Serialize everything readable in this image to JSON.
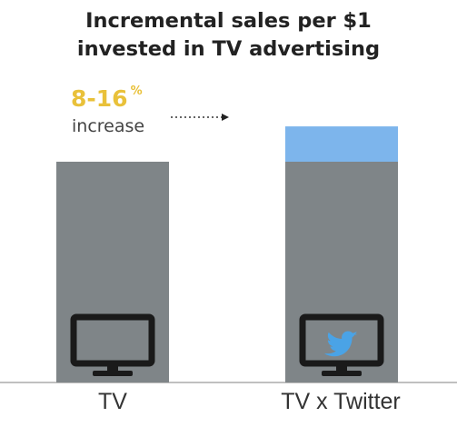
{
  "chart_data": {
    "type": "bar",
    "title_lines": [
      "Incremental sales per $1",
      "invested in TV advertising"
    ],
    "categories": [
      "TV",
      "TV x Twitter"
    ],
    "series": [
      {
        "values": [
          1.0,
          1.0
        ]
      },
      {
        "values": [
          0,
          0.16
        ]
      }
    ],
    "ylim": [
      0,
      1.2
    ],
    "annotation": {
      "value": "8-16",
      "unit": "%",
      "label": "increase"
    },
    "icons": [
      "tv-icon",
      "tv-twitter-icon"
    ],
    "colors": {
      "base_bar": "#7f8588",
      "increment_bar": "#7db5ec",
      "annotation_value": "#e9c13a",
      "twitter_bird": "#4aa3e6",
      "tv_frame": "#1a1a1a"
    }
  }
}
